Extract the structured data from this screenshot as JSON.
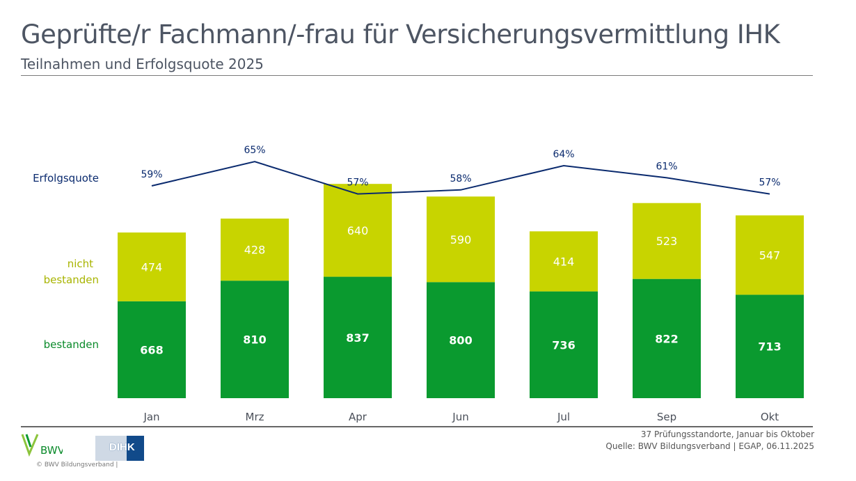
{
  "header": {
    "title": "Geprüfte/r Fachmann/-frau für Versicherungsvermittlung IHK",
    "subtitle": "Teilnahmen und Erfolgsquote 2025"
  },
  "chart_data": {
    "type": "bar",
    "stacked": true,
    "categories": [
      "Jan",
      "Mrz",
      "Apr",
      "Jun",
      "Jul",
      "Sep",
      "Okt"
    ],
    "series": [
      {
        "name": "bestanden",
        "values": [
          668,
          810,
          837,
          800,
          736,
          822,
          713
        ],
        "color": "#0a9a2f"
      },
      {
        "name": "nicht bestanden",
        "values": [
          474,
          428,
          640,
          590,
          414,
          523,
          547
        ],
        "color": "#c8d400"
      }
    ],
    "line": {
      "name": "Erfolgsquote",
      "values": [
        59,
        65,
        57,
        58,
        64,
        61,
        57
      ],
      "unit": "%",
      "color": "#0a2a6e"
    },
    "legend_placement": "left",
    "grid": false
  },
  "legend": {
    "line": "Erfolgsquote",
    "nicht1": "nicht",
    "nicht2": "bestanden",
    "bestanden": "bestanden"
  },
  "footer": {
    "note1": "37 Prüfungsstandorte, Januar bis Oktober",
    "note2": "Quelle: BWV Bildungsverband | EGAP, 06.11.2025",
    "copyright": "© BWV Bildungsverband |",
    "logo_bwv": "BWV",
    "logo_dihk": "DIHK"
  }
}
